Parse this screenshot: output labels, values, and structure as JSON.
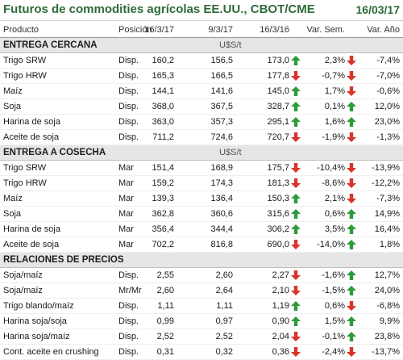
{
  "header": {
    "title": "Futuros de commodities agrícolas EE.UU., CBOT/CME",
    "date": "16/03/17"
  },
  "columns": [
    "Producto",
    "Posición",
    "16/3/17",
    "9/3/17",
    "16/3/16",
    "Var. Sem.",
    "Var. Año"
  ],
  "colors": {
    "title": "#2f6b3a",
    "up": "#2e9a3a",
    "down": "#d9342b",
    "section_bg": "#e6e6e6"
  },
  "sections": [
    {
      "title": "ENTREGA CERCANA",
      "unit": "U$S/t",
      "rows": [
        {
          "name": "Trigo SRW",
          "pos": "Disp.",
          "v1": "160,2",
          "v2": "156,5",
          "v3": "173,0",
          "sem": "2,3%",
          "ano": "-7,4%",
          "dir_sem": "up-arrow-icon",
          "dir_ano": "down-arrow-icon"
        },
        {
          "name": "Trigo HRW",
          "pos": "Disp.",
          "v1": "165,3",
          "v2": "166,5",
          "v3": "177,8",
          "sem": "-0,7%",
          "ano": "-7,0%",
          "dir_sem": "down-arrow-icon",
          "dir_ano": "down-arrow-icon"
        },
        {
          "name": "Maíz",
          "pos": "Disp.",
          "v1": "144,1",
          "v2": "141,6",
          "v3": "145,0",
          "sem": "1,7%",
          "ano": "-0,6%",
          "dir_sem": "up-arrow-icon",
          "dir_ano": "down-arrow-icon"
        },
        {
          "name": "Soja",
          "pos": "Disp.",
          "v1": "368,0",
          "v2": "367,5",
          "v3": "328,7",
          "sem": "0,1%",
          "ano": "12,0%",
          "dir_sem": "up-arrow-icon",
          "dir_ano": "up-arrow-icon"
        },
        {
          "name": "Harina de soja",
          "pos": "Disp.",
          "v1": "363,0",
          "v2": "357,3",
          "v3": "295,1",
          "sem": "1,6%",
          "ano": "23,0%",
          "dir_sem": "up-arrow-icon",
          "dir_ano": "up-arrow-icon"
        },
        {
          "name": "Aceite de soja",
          "pos": "Disp.",
          "v1": "711,2",
          "v2": "724,6",
          "v3": "720,7",
          "sem": "-1,9%",
          "ano": "-1,3%",
          "dir_sem": "down-arrow-icon",
          "dir_ano": "down-arrow-icon"
        }
      ]
    },
    {
      "title": "ENTREGA A COSECHA",
      "unit": "U$S/t",
      "rows": [
        {
          "name": "Trigo SRW",
          "pos": "Mar",
          "v1": "151,4",
          "v2": "168,9",
          "v3": "175,7",
          "sem": "-10,4%",
          "ano": "-13,9%",
          "dir_sem": "down-arrow-icon",
          "dir_ano": "down-arrow-icon"
        },
        {
          "name": "Trigo HRW",
          "pos": "Mar",
          "v1": "159,2",
          "v2": "174,3",
          "v3": "181,3",
          "sem": "-8,6%",
          "ano": "-12,2%",
          "dir_sem": "down-arrow-icon",
          "dir_ano": "down-arrow-icon"
        },
        {
          "name": "Maíz",
          "pos": "Mar",
          "v1": "139,3",
          "v2": "136,4",
          "v3": "150,3",
          "sem": "2,1%",
          "ano": "-7,3%",
          "dir_sem": "up-arrow-icon",
          "dir_ano": "down-arrow-icon"
        },
        {
          "name": "Soja",
          "pos": "Mar",
          "v1": "362,8",
          "v2": "360,6",
          "v3": "315,6",
          "sem": "0,6%",
          "ano": "14,9%",
          "dir_sem": "up-arrow-icon",
          "dir_ano": "up-arrow-icon"
        },
        {
          "name": "Harina de soja",
          "pos": "Mar",
          "v1": "356,4",
          "v2": "344,4",
          "v3": "306,2",
          "sem": "3,5%",
          "ano": "16,4%",
          "dir_sem": "up-arrow-icon",
          "dir_ano": "up-arrow-icon"
        },
        {
          "name": "Aceite de soja",
          "pos": "Mar",
          "v1": "702,2",
          "v2": "816,8",
          "v3": "690,0",
          "sem": "-14,0%",
          "ano": "1,8%",
          "dir_sem": "down-arrow-icon",
          "dir_ano": "up-arrow-icon"
        }
      ]
    },
    {
      "title": "RELACIONES DE PRECIOS",
      "unit": "",
      "rows": [
        {
          "name": "Soja/maíz",
          "pos": "Disp.",
          "v1": "2,55",
          "v2": "2,60",
          "v3": "2,27",
          "sem": "-1,6%",
          "ano": "12,7%",
          "dir_sem": "down-arrow-icon",
          "dir_ano": "up-arrow-icon"
        },
        {
          "name": "Soja/maíz",
          "pos": "Mr/Mr",
          "v1": "2,60",
          "v2": "2,64",
          "v3": "2,10",
          "sem": "-1,5%",
          "ano": "24,0%",
          "dir_sem": "down-arrow-icon",
          "dir_ano": "up-arrow-icon"
        },
        {
          "name": "Trigo blando/maíz",
          "pos": "Disp.",
          "v1": "1,11",
          "v2": "1,11",
          "v3": "1,19",
          "sem": "0,6%",
          "ano": "-6,8%",
          "dir_sem": "up-arrow-icon",
          "dir_ano": "down-arrow-icon"
        },
        {
          "name": "Harina soja/soja",
          "pos": "Disp.",
          "v1": "0,99",
          "v2": "0,97",
          "v3": "0,90",
          "sem": "1,5%",
          "ano": "9,9%",
          "dir_sem": "up-arrow-icon",
          "dir_ano": "up-arrow-icon"
        },
        {
          "name": "Harina soja/maíz",
          "pos": "Disp.",
          "v1": "2,52",
          "v2": "2,52",
          "v3": "2,04",
          "sem": "-0,1%",
          "ano": "23,8%",
          "dir_sem": "down-arrow-icon",
          "dir_ano": "up-arrow-icon"
        },
        {
          "name": "Cont. aceite en crushing",
          "pos": "Disp.",
          "v1": "0,31",
          "v2": "0,32",
          "v3": "0,36",
          "sem": "-2,4%",
          "ano": "-13,7%",
          "dir_sem": "down-arrow-icon",
          "dir_ano": "down-arrow-icon"
        }
      ]
    }
  ]
}
